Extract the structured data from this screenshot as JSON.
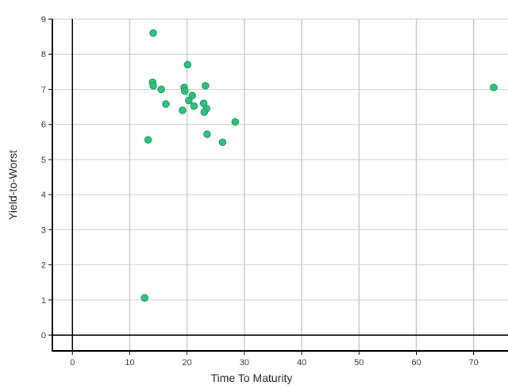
{
  "chart_data": {
    "type": "scatter",
    "title": "",
    "xlabel": "Time To Maturity",
    "ylabel": "Yield-to-Worst",
    "xlim": [
      -3.5,
      76
    ],
    "ylim": [
      -0.45,
      9
    ],
    "xticks": [
      0,
      10,
      20,
      30,
      40,
      50,
      60,
      70
    ],
    "yticks": [
      0,
      1,
      2,
      3,
      4,
      5,
      6,
      7,
      8,
      9
    ],
    "grid": true,
    "legend": "none",
    "point_color": "#2ec27e",
    "point_stroke": "#1e9e62",
    "points": [
      {
        "x": 14.1,
        "y": 8.6
      },
      {
        "x": 20.1,
        "y": 7.7
      },
      {
        "x": 14.0,
        "y": 7.2
      },
      {
        "x": 14.1,
        "y": 7.1
      },
      {
        "x": 15.5,
        "y": 7.0
      },
      {
        "x": 19.5,
        "y": 7.05
      },
      {
        "x": 19.6,
        "y": 6.95
      },
      {
        "x": 23.2,
        "y": 7.1
      },
      {
        "x": 73.5,
        "y": 7.05
      },
      {
        "x": 20.9,
        "y": 6.82
      },
      {
        "x": 20.3,
        "y": 6.68
      },
      {
        "x": 16.3,
        "y": 6.58
      },
      {
        "x": 21.2,
        "y": 6.52
      },
      {
        "x": 22.9,
        "y": 6.6
      },
      {
        "x": 23.4,
        "y": 6.45
      },
      {
        "x": 23.0,
        "y": 6.35
      },
      {
        "x": 19.2,
        "y": 6.4
      },
      {
        "x": 28.4,
        "y": 6.07
      },
      {
        "x": 23.5,
        "y": 5.72
      },
      {
        "x": 13.2,
        "y": 5.56
      },
      {
        "x": 26.2,
        "y": 5.49
      },
      {
        "x": 12.6,
        "y": 1.06
      }
    ]
  }
}
